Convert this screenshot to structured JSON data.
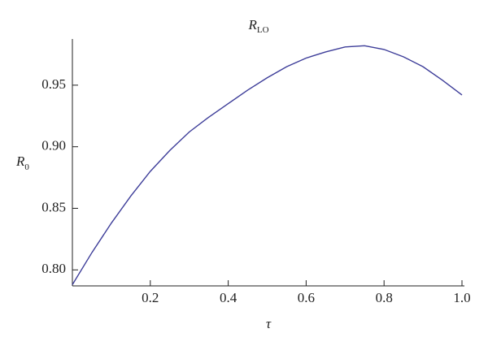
{
  "chart_data": {
    "type": "line",
    "title": "R",
    "title_subscript": "LO",
    "xlabel": "τ",
    "ylabel": "R",
    "ylabel_subscript": "0",
    "x": [
      0,
      0.05,
      0.1,
      0.15,
      0.2,
      0.25,
      0.3,
      0.35,
      0.4,
      0.45,
      0.5,
      0.55,
      0.6,
      0.65,
      0.7,
      0.75,
      0.8,
      0.85,
      0.9,
      0.95,
      1.0
    ],
    "series": [
      {
        "color": "#3d3d99",
        "values": [
          0.788,
          0.814,
          0.838,
          0.86,
          0.88,
          0.897,
          0.912,
          0.924,
          0.935,
          0.946,
          0.956,
          0.965,
          0.972,
          0.977,
          0.981,
          0.982,
          0.979,
          0.973,
          0.965,
          0.954,
          0.942
        ]
      }
    ],
    "xlim": [
      0,
      1
    ],
    "ylim": [
      0.787,
      0.9875
    ],
    "xticks": [
      0.2,
      0.4,
      0.6,
      0.8,
      {
        "value": 1,
        "label": "1.0"
      }
    ],
    "yticks": [
      {
        "value": 0.8,
        "label": "0.80"
      },
      0.85,
      {
        "value": 0.9,
        "label": "0.90"
      },
      0.95
    ],
    "grid": false
  }
}
